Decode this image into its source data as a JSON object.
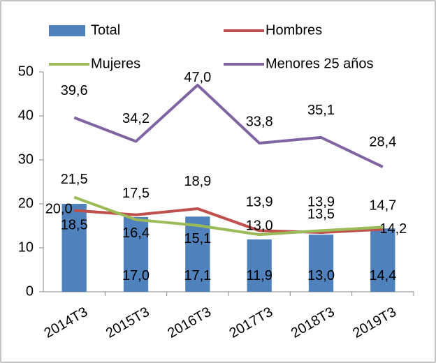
{
  "chart_data": {
    "type": "bar",
    "categories": [
      "2014T3",
      "2015T3",
      "2016T3",
      "2017T3",
      "2018T3",
      "2019T3"
    ],
    "series": [
      {
        "name": "Total",
        "type": "bar",
        "color": "#4f81bd",
        "values": [
          20.0,
          17.0,
          17.1,
          11.9,
          13.0,
          14.4
        ],
        "value_labels": [
          "20,0",
          "17,0",
          "17,1",
          "11,9",
          "13,0",
          "14,4"
        ]
      },
      {
        "name": "Hombres",
        "type": "line",
        "color": "#c0504d",
        "values": [
          18.5,
          17.5,
          18.9,
          13.9,
          13.5,
          14.2
        ],
        "value_labels": [
          "18,5",
          "17,5",
          "18,9",
          "13,9",
          "13,5",
          "14,2"
        ]
      },
      {
        "name": "Mujeres",
        "type": "line",
        "color": "#9bbb59",
        "values": [
          21.5,
          16.4,
          15.1,
          13.0,
          13.9,
          14.7
        ],
        "value_labels": [
          "21,5",
          "16,4",
          "15,1",
          "13,0",
          "13,9",
          "14,7"
        ]
      },
      {
        "name": "Menores 25 años",
        "type": "line",
        "color": "#8064a2",
        "values": [
          39.6,
          34.2,
          47.0,
          33.8,
          35.1,
          28.4
        ],
        "value_labels": [
          "39,6",
          "34,2",
          "47,0",
          "33,8",
          "35,1",
          "28,4"
        ]
      }
    ],
    "ylim": [
      0,
      50
    ],
    "yticks": [
      0,
      10,
      20,
      30,
      40,
      50
    ],
    "grid": false
  }
}
